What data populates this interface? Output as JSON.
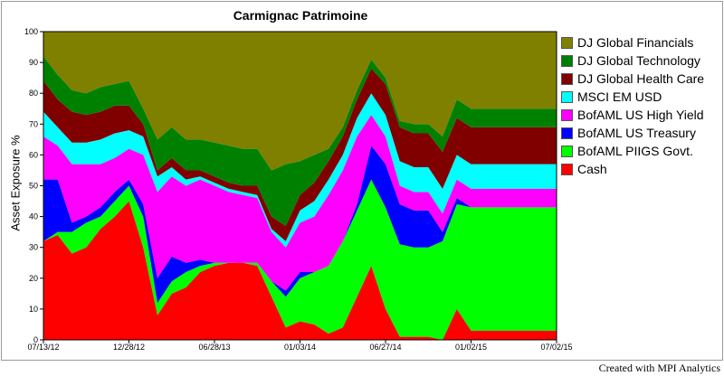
{
  "chart_data": {
    "type": "area",
    "stacked": true,
    "title": "Carmignac Patrimoine",
    "xlabel": "",
    "ylabel": "Asset Exposure %",
    "ylim": [
      0,
      100
    ],
    "yticks": [
      0,
      10,
      20,
      30,
      40,
      50,
      60,
      70,
      80,
      90,
      100
    ],
    "xtick_labels": [
      "07/13/12",
      "12/28/12",
      "06/28/13",
      "01/03/14",
      "06/27/14",
      "01/02/15",
      "07/02/15"
    ],
    "x": [
      "2012-07",
      "2012-08",
      "2012-09",
      "2012-10",
      "2012-11",
      "2012-12",
      "2013-01",
      "2013-02",
      "2013-03",
      "2013-04",
      "2013-05",
      "2013-06",
      "2013-07",
      "2013-08",
      "2013-09",
      "2013-10",
      "2013-11",
      "2013-12",
      "2014-01",
      "2014-02",
      "2014-03",
      "2014-04",
      "2014-05",
      "2014-06",
      "2014-07",
      "2014-08",
      "2014-09",
      "2014-10",
      "2014-11",
      "2014-12",
      "2015-01",
      "2015-02",
      "2015-03",
      "2015-04",
      "2015-05",
      "2015-06",
      "2015-07"
    ],
    "legend_position": "right",
    "series": [
      {
        "name": "Cash",
        "color": "#ff0000",
        "values": [
          32,
          34,
          28,
          30,
          36,
          40,
          45,
          30,
          8,
          15,
          17,
          22,
          24,
          25,
          25,
          24,
          14,
          4,
          6,
          5,
          2,
          4,
          14,
          24,
          10,
          1,
          1,
          1,
          0,
          10,
          3,
          3,
          3,
          3,
          3,
          3,
          3
        ]
      },
      {
        "name": "BofAML PIIGS Govt.",
        "color": "#00ff00",
        "values": [
          0,
          1,
          7,
          8,
          4,
          5,
          5,
          10,
          4,
          4,
          5,
          2,
          1,
          0,
          0,
          1,
          5,
          10,
          14,
          17,
          22,
          28,
          28,
          28,
          33,
          30,
          29,
          29,
          32,
          34,
          40,
          40,
          40,
          40,
          40,
          40,
          40
        ]
      },
      {
        "name": "BofAML US Treasury",
        "color": "#0000ff",
        "values": [
          20,
          17,
          3,
          2,
          3,
          3,
          2,
          4,
          8,
          8,
          3,
          2,
          0,
          0,
          0,
          0,
          0,
          2,
          2,
          0,
          0,
          0,
          2,
          11,
          14,
          13,
          12,
          12,
          3,
          2,
          0,
          0,
          0,
          0,
          0,
          0,
          0
        ]
      },
      {
        "name": "BofAML US High Yield",
        "color": "#ff00ff",
        "values": [
          14,
          11,
          19,
          17,
          14,
          11,
          10,
          16,
          28,
          26,
          25,
          26,
          25,
          23,
          22,
          21,
          16,
          14,
          16,
          18,
          23,
          23,
          22,
          10,
          9,
          6,
          6,
          6,
          6,
          6,
          6,
          6,
          6,
          6,
          6,
          6,
          6
        ]
      },
      {
        "name": "MSCI EM USD",
        "color": "#00ffff",
        "values": [
          8,
          6,
          7,
          7,
          8,
          8,
          6,
          6,
          5,
          3,
          2,
          1,
          1,
          1,
          1,
          1,
          1,
          2,
          4,
          5,
          5,
          5,
          6,
          7,
          7,
          8,
          8,
          8,
          8,
          8,
          8,
          8,
          8,
          8,
          8,
          8,
          8
        ]
      },
      {
        "name": "DJ Global Health Care",
        "color": "#800000",
        "values": [
          10,
          9,
          10,
          9,
          9,
          9,
          8,
          4,
          2,
          3,
          3,
          2,
          2,
          2,
          2,
          3,
          4,
          5,
          5,
          6,
          6,
          6,
          6,
          8,
          10,
          11,
          11,
          11,
          12,
          12,
          12,
          12,
          12,
          12,
          12,
          12,
          12
        ]
      },
      {
        "name": "DJ Global Technology",
        "color": "#008000",
        "values": [
          8,
          8,
          7,
          7,
          8,
          7,
          8,
          5,
          10,
          10,
          10,
          10,
          11,
          12,
          12,
          12,
          15,
          20,
          11,
          9,
          4,
          3,
          3,
          3,
          2,
          2,
          3,
          3,
          5,
          6,
          6,
          6,
          6,
          6,
          6,
          6,
          6
        ]
      },
      {
        "name": "DJ Global Financials",
        "color": "#808000",
        "values": [
          8,
          14,
          19,
          20,
          18,
          17,
          16,
          25,
          35,
          31,
          35,
          35,
          36,
          37,
          38,
          38,
          45,
          43,
          42,
          40,
          38,
          31,
          19,
          9,
          15,
          29,
          30,
          30,
          34,
          22,
          25,
          25,
          25,
          25,
          25,
          25,
          25
        ]
      }
    ]
  },
  "credit": "Created with MPI Analytics"
}
